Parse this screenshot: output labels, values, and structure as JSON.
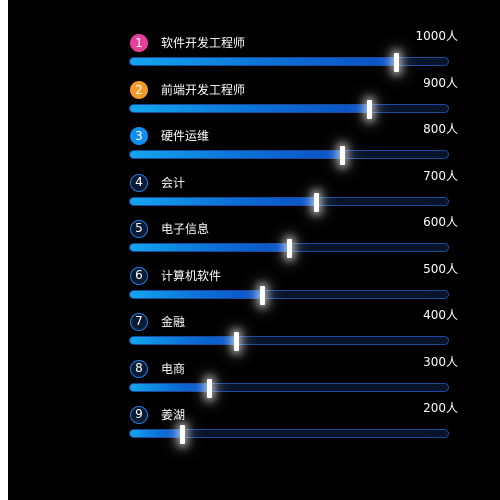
{
  "chart_data": {
    "type": "bar",
    "orientation": "horizontal",
    "max": 1200,
    "unit": "人",
    "items": [
      {
        "rank": "1",
        "name": "软件开发工程师",
        "value": 1000,
        "value_label": "1000人"
      },
      {
        "rank": "2",
        "name": "前端开发工程师",
        "value": 900,
        "value_label": "900人"
      },
      {
        "rank": "3",
        "name": "硬件运维",
        "value": 800,
        "value_label": "800人"
      },
      {
        "rank": "4",
        "name": "会计",
        "value": 700,
        "value_label": "700人"
      },
      {
        "rank": "5",
        "name": "电子信息",
        "value": 600,
        "value_label": "600人"
      },
      {
        "rank": "6",
        "name": "计算机软件",
        "value": 500,
        "value_label": "500人"
      },
      {
        "rank": "7",
        "name": "金融",
        "value": 400,
        "value_label": "400人"
      },
      {
        "rank": "8",
        "name": "电商",
        "value": 300,
        "value_label": "300人"
      },
      {
        "rank": "9",
        "name": "姜湖",
        "value": 200,
        "value_label": "200人"
      }
    ]
  },
  "colors": {
    "background": "#000000",
    "track": "#08142a",
    "track_border": "#1b4a9a",
    "fill_start": "#13a6ee",
    "fill_end": "#0a4fc4",
    "rank1": "#e83e9c",
    "rank2": "#f39a2b",
    "rank3": "#0f8ff0",
    "rank_other_border": "#1f7de0"
  }
}
